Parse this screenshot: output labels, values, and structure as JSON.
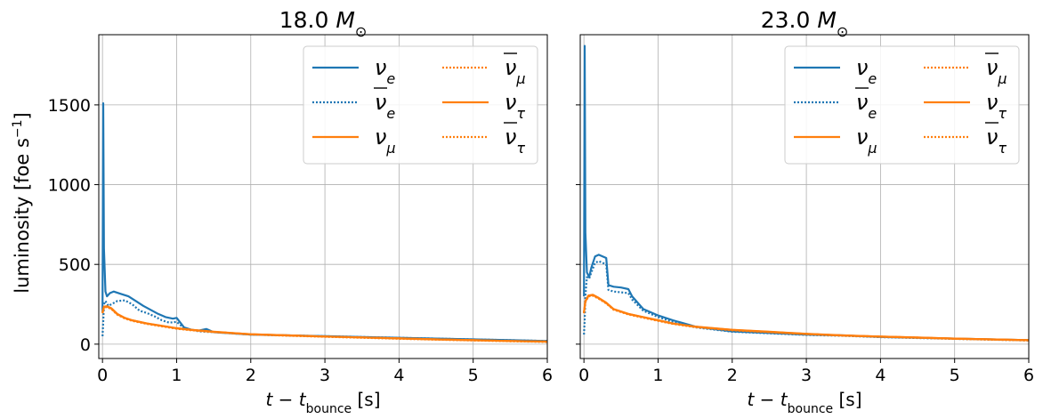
{
  "figure": {
    "ylabel": "luminosity [foe s",
    "ylabel_sup": "−1",
    "ylabel_close": "]"
  },
  "chart_data": [
    {
      "type": "line",
      "title": "18.0 M",
      "title_sub": "⊙",
      "xlabel_main": "t − t",
      "xlabel_sub": "bounce",
      "xlabel_unit": "[s]",
      "xlim": [
        -0.05,
        6
      ],
      "ylim": [
        -90,
        1940
      ],
      "xticks": [
        0,
        1,
        2,
        3,
        4,
        5,
        6
      ],
      "yticks": [
        0,
        500,
        1000,
        1500
      ],
      "grid": true,
      "legend_placement": "top-right",
      "series": [
        {
          "name": "ν",
          "sub": "e",
          "bar": false,
          "color": "#1f77b4",
          "dash": "solid",
          "x": [
            0,
            0.01,
            0.02,
            0.04,
            0.06,
            0.1,
            0.15,
            0.25,
            0.35,
            0.45,
            0.55,
            0.65,
            0.75,
            0.85,
            0.95,
            1.0,
            1.1,
            1.2,
            1.3,
            1.4,
            1.5,
            2,
            2.5,
            3,
            3.5,
            4,
            4.5,
            5,
            5.5,
            6
          ],
          "y": [
            200,
            1510,
            600,
            330,
            300,
            320,
            330,
            315,
            300,
            270,
            240,
            215,
            190,
            170,
            160,
            165,
            105,
            90,
            85,
            95,
            75,
            60,
            55,
            50,
            45,
            40,
            35,
            30,
            25,
            20
          ]
        },
        {
          "name": "ν",
          "sub": "e",
          "bar": true,
          "color": "#1f77b4",
          "dash": "dotted",
          "x": [
            0,
            0.01,
            0.02,
            0.04,
            0.08,
            0.12,
            0.2,
            0.3,
            0.4,
            0.5,
            0.6,
            0.7,
            0.8,
            0.9,
            1.0,
            1.1,
            1.3,
            1.5,
            2,
            2.5,
            3,
            3.5,
            4,
            4.5,
            5,
            5.5,
            6
          ],
          "y": [
            50,
            140,
            250,
            270,
            240,
            250,
            270,
            275,
            250,
            210,
            195,
            175,
            150,
            135,
            140,
            100,
            80,
            75,
            60,
            55,
            50,
            45,
            40,
            35,
            30,
            25,
            20
          ]
        },
        {
          "name": "ν",
          "sub": "μ",
          "bar": false,
          "color": "#ff7f0e",
          "dash": "solid",
          "x": [
            0,
            0.02,
            0.06,
            0.12,
            0.2,
            0.3,
            0.4,
            0.6,
            0.8,
            1.0,
            1.2,
            1.5,
            2,
            2.5,
            3,
            3.5,
            4,
            4.5,
            5,
            5.5,
            6
          ],
          "y": [
            200,
            235,
            238,
            225,
            190,
            165,
            150,
            130,
            115,
            100,
            90,
            78,
            62,
            55,
            48,
            42,
            36,
            30,
            25,
            20,
            16
          ]
        },
        {
          "name": "ν",
          "sub": "μ",
          "bar": true,
          "color": "#ff7f0e",
          "dash": "dotted",
          "x": [
            0,
            0.02,
            0.06,
            0.12,
            0.2,
            0.3,
            0.4,
            0.6,
            0.8,
            1.0,
            1.2,
            1.5,
            2,
            2.5,
            3,
            3.5,
            4,
            4.5,
            5,
            5.5,
            6
          ],
          "y": [
            195,
            230,
            234,
            221,
            186,
            162,
            147,
            128,
            113,
            98,
            88,
            77,
            61,
            54,
            47,
            41,
            35,
            29,
            24,
            19,
            15
          ]
        },
        {
          "name": "ν",
          "sub": "τ",
          "bar": false,
          "color": "#ff7f0e",
          "dash": "solid",
          "x": [
            0,
            0.02,
            0.06,
            0.12,
            0.2,
            0.3,
            0.4,
            0.6,
            0.8,
            1.0,
            1.2,
            1.5,
            2,
            2.5,
            3,
            3.5,
            4,
            4.5,
            5,
            5.5,
            6
          ],
          "y": [
            198,
            233,
            236,
            223,
            188,
            164,
            149,
            129,
            114,
            99,
            89,
            77,
            62,
            55,
            48,
            42,
            36,
            30,
            25,
            20,
            16
          ]
        },
        {
          "name": "ν",
          "sub": "τ",
          "bar": true,
          "color": "#ff7f0e",
          "dash": "dotted",
          "x": [
            0,
            0.02,
            0.06,
            0.12,
            0.2,
            0.3,
            0.4,
            0.6,
            0.8,
            1.0,
            1.2,
            1.5,
            2,
            2.5,
            3,
            3.5,
            4,
            4.5,
            5,
            5.5,
            6
          ],
          "y": [
            194,
            229,
            233,
            220,
            185,
            161,
            146,
            127,
            112,
            97,
            87,
            76,
            60,
            53,
            46,
            40,
            34,
            28,
            23,
            18,
            14
          ]
        }
      ]
    },
    {
      "type": "line",
      "title": "23.0 M",
      "title_sub": "⊙",
      "xlabel_main": "t − t",
      "xlabel_sub": "bounce",
      "xlabel_unit": "[s]",
      "xlim": [
        -0.05,
        6
      ],
      "ylim": [
        -90,
        1940
      ],
      "xticks": [
        0,
        1,
        2,
        3,
        4,
        5,
        6
      ],
      "yticks": [
        0,
        500,
        1000,
        1500
      ],
      "grid": true,
      "legend_placement": "top-right",
      "series": [
        {
          "name": "ν",
          "sub": "e",
          "bar": false,
          "color": "#1f77b4",
          "dash": "solid",
          "x": [
            0,
            0.01,
            0.02,
            0.04,
            0.07,
            0.1,
            0.15,
            0.2,
            0.3,
            0.33,
            0.4,
            0.5,
            0.6,
            0.65,
            0.8,
            1.0,
            1.2,
            1.5,
            2,
            2.5,
            3,
            3.5,
            4,
            4.5,
            5,
            5.5,
            6
          ],
          "y": [
            300,
            1870,
            700,
            450,
            420,
            480,
            550,
            560,
            540,
            370,
            360,
            355,
            345,
            300,
            220,
            180,
            150,
            110,
            80,
            70,
            60,
            55,
            45,
            40,
            35,
            30,
            25
          ]
        },
        {
          "name": "ν",
          "sub": "e",
          "bar": true,
          "color": "#1f77b4",
          "dash": "dotted",
          "x": [
            0,
            0.01,
            0.02,
            0.04,
            0.07,
            0.1,
            0.15,
            0.2,
            0.3,
            0.33,
            0.4,
            0.5,
            0.6,
            0.65,
            0.8,
            1.0,
            1.2,
            1.5,
            2,
            2.5,
            3,
            3.5,
            4,
            4.5,
            5,
            5.5,
            6
          ],
          "y": [
            60,
            150,
            300,
            420,
            410,
            450,
            510,
            520,
            500,
            340,
            330,
            325,
            320,
            280,
            210,
            170,
            140,
            105,
            78,
            68,
            58,
            52,
            44,
            38,
            33,
            28,
            23
          ]
        },
        {
          "name": "ν",
          "sub": "μ",
          "bar": false,
          "color": "#ff7f0e",
          "dash": "solid",
          "x": [
            0,
            0.02,
            0.06,
            0.12,
            0.2,
            0.3,
            0.4,
            0.6,
            0.8,
            1.0,
            1.2,
            1.5,
            2,
            2.5,
            3,
            3.5,
            4,
            4.5,
            5,
            5.5,
            6
          ],
          "y": [
            200,
            270,
            305,
            310,
            290,
            260,
            220,
            190,
            170,
            150,
            130,
            110,
            90,
            78,
            65,
            55,
            48,
            42,
            35,
            30,
            25
          ]
        },
        {
          "name": "ν",
          "sub": "μ",
          "bar": true,
          "color": "#ff7f0e",
          "dash": "dotted",
          "x": [
            0,
            0.02,
            0.06,
            0.12,
            0.2,
            0.3,
            0.4,
            0.6,
            0.8,
            1.0,
            1.2,
            1.5,
            2,
            2.5,
            3,
            3.5,
            4,
            4.5,
            5,
            5.5,
            6
          ],
          "y": [
            195,
            265,
            300,
            305,
            286,
            256,
            217,
            187,
            167,
            147,
            128,
            108,
            88,
            76,
            64,
            54,
            47,
            41,
            34,
            29,
            24
          ]
        },
        {
          "name": "ν",
          "sub": "τ",
          "bar": false,
          "color": "#ff7f0e",
          "dash": "solid",
          "x": [
            0,
            0.02,
            0.06,
            0.12,
            0.2,
            0.3,
            0.4,
            0.6,
            0.8,
            1.0,
            1.2,
            1.5,
            2,
            2.5,
            3,
            3.5,
            4,
            4.5,
            5,
            5.5,
            6
          ],
          "y": [
            198,
            268,
            303,
            308,
            288,
            258,
            219,
            189,
            169,
            149,
            129,
            109,
            89,
            77,
            64,
            54,
            47,
            41,
            35,
            30,
            25
          ]
        },
        {
          "name": "ν",
          "sub": "τ",
          "bar": true,
          "color": "#ff7f0e",
          "dash": "dotted",
          "x": [
            0,
            0.02,
            0.06,
            0.12,
            0.2,
            0.3,
            0.4,
            0.6,
            0.8,
            1.0,
            1.2,
            1.5,
            2,
            2.5,
            3,
            3.5,
            4,
            4.5,
            5,
            5.5,
            6
          ],
          "y": [
            194,
            264,
            299,
            304,
            285,
            255,
            216,
            186,
            166,
            146,
            127,
            107,
            87,
            75,
            63,
            53,
            46,
            40,
            33,
            28,
            23
          ]
        }
      ]
    }
  ]
}
